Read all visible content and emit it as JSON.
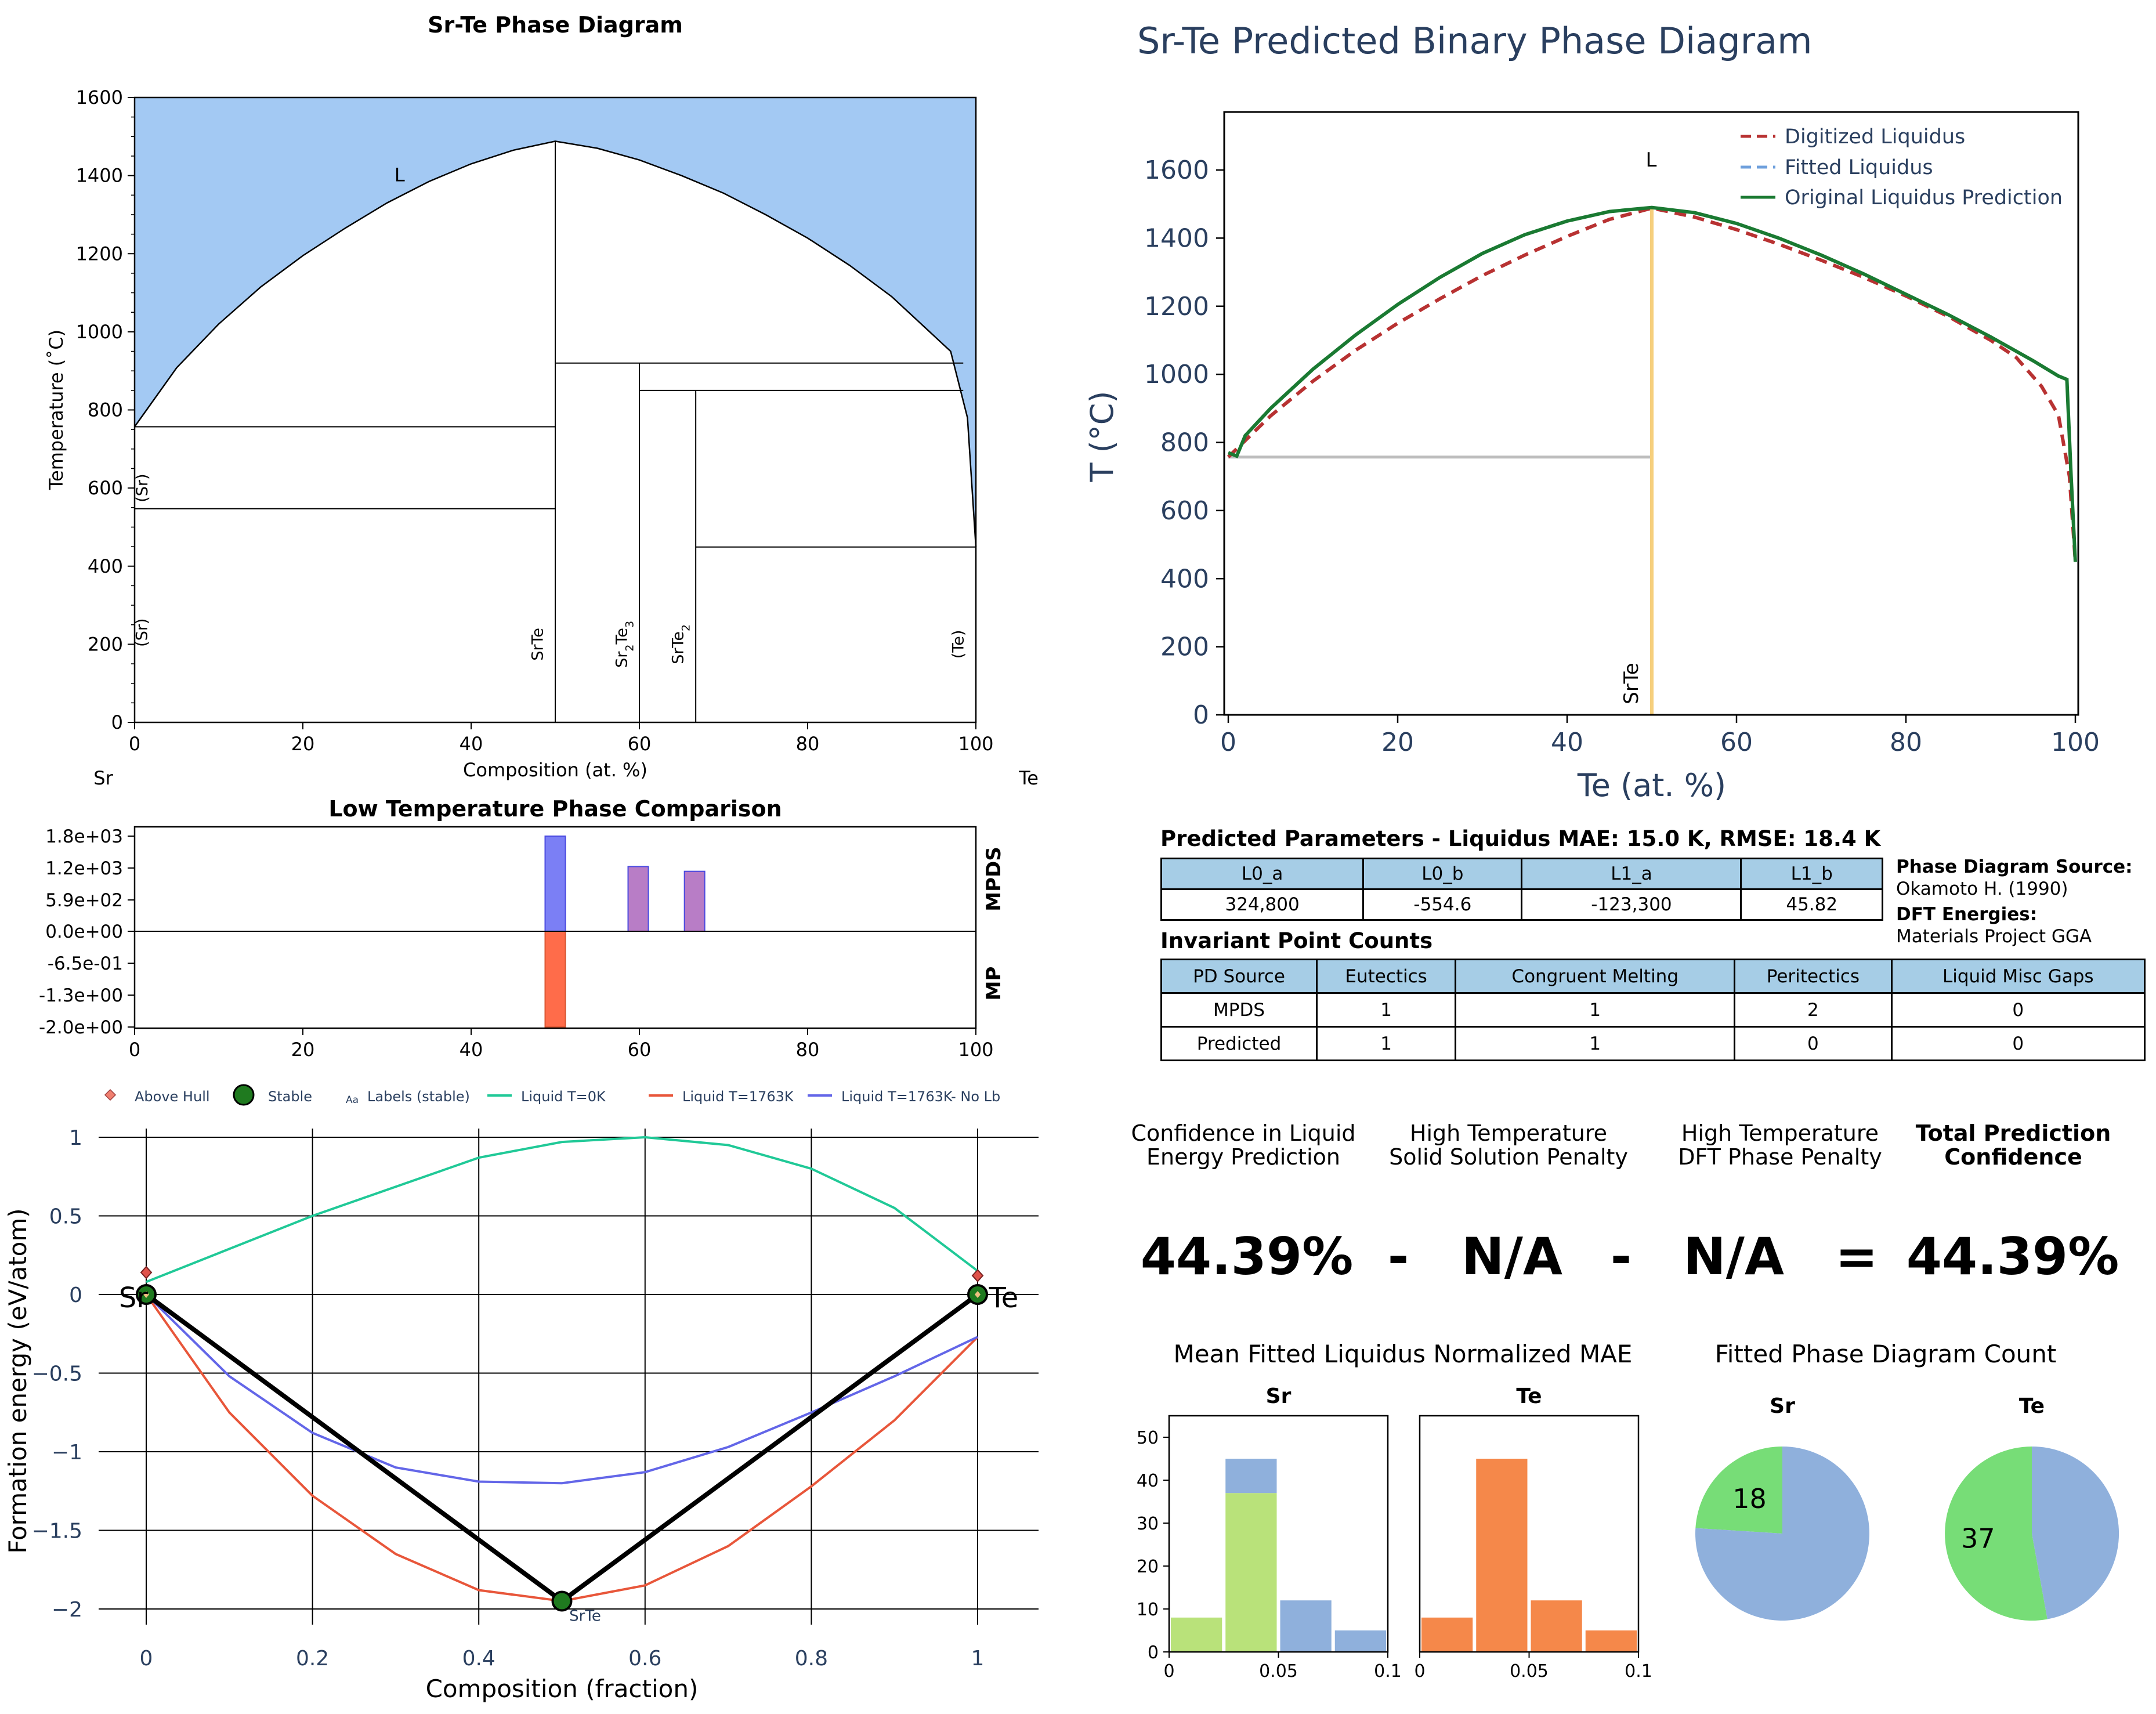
{
  "chart_data": [
    {
      "type": "area",
      "title": "Sr-Te Phase Diagram",
      "xlabel": "Composition (at. %)",
      "ylabel": "Temperature (˚C)",
      "xlim": [
        0,
        100
      ],
      "ylim": [
        0,
        1600
      ],
      "xticks": [
        "0",
        "20",
        "40",
        "60",
        "80",
        "100"
      ],
      "yticks": [
        "0",
        "200",
        "400",
        "600",
        "800",
        "1000",
        "1200",
        "1400",
        "1600"
      ],
      "left_element": "Sr",
      "right_element": "Te",
      "liquid_label": "L",
      "liquidus": [
        [
          0,
          757
        ],
        [
          5,
          908
        ],
        [
          10,
          1020
        ],
        [
          15,
          1115
        ],
        [
          20,
          1195
        ],
        [
          25,
          1265
        ],
        [
          30,
          1330
        ],
        [
          35,
          1385
        ],
        [
          40,
          1430
        ],
        [
          45,
          1465
        ],
        [
          50,
          1488
        ],
        [
          55,
          1470
        ],
        [
          60,
          1440
        ],
        [
          65,
          1400
        ],
        [
          70,
          1355
        ],
        [
          75,
          1300
        ],
        [
          80,
          1240
        ],
        [
          85,
          1170
        ],
        [
          90,
          1090
        ],
        [
          94,
          1010
        ],
        [
          97,
          950
        ],
        [
          99,
          780
        ],
        [
          100,
          449
        ]
      ],
      "horizontal_lines": [
        {
          "x": [
            0,
            50
          ],
          "y": 757
        },
        {
          "x": [
            0,
            50
          ],
          "y": 547
        },
        {
          "x": [
            50,
            98.5
          ],
          "y": 920
        },
        {
          "x": [
            60,
            98.5
          ],
          "y": 850
        },
        {
          "x": [
            66.7,
            100
          ],
          "y": 449
        }
      ],
      "vertical_lines": [
        {
          "x": 50,
          "y": [
            0,
            1488
          ]
        },
        {
          "x": 60,
          "y": [
            0,
            920
          ]
        },
        {
          "x": 66.7,
          "y": [
            0,
            850
          ]
        }
      ],
      "phase_labels": [
        {
          "text": "(Sr)",
          "x": 1.5,
          "y": 600
        },
        {
          "text": "(Sr)",
          "x": 1.5,
          "y": 230
        },
        {
          "text": "SrTe",
          "x": 48.5,
          "y": 200
        },
        {
          "text": "Sr2Te3",
          "x": 58.5,
          "y": 200
        },
        {
          "text": "SrTe2",
          "x": 65.2,
          "y": 200
        },
        {
          "text": "(Te)",
          "x": 98.5,
          "y": 200
        }
      ]
    },
    {
      "type": "bar",
      "title": "Low Temperature Phase Comparison",
      "xlim": [
        0,
        100
      ],
      "xticks": [
        "0",
        "20",
        "40",
        "60",
        "80",
        "100"
      ],
      "yticks": [
        "1.8e+03",
        "1.2e+03",
        "5.9e+02",
        "0.0e+00",
        "-6.5e-01",
        "-1.3e+00",
        "-2.0e+00"
      ],
      "series": [
        {
          "name": "MPDS",
          "bars": [
            {
              "x": 50,
              "value": 1.0,
              "color": "#7b7ff5"
            },
            {
              "x": 60,
              "value": 0.68,
              "color": "#b87dc6"
            },
            {
              "x": 66.7,
              "value": 0.63,
              "color": "#b87dc6"
            }
          ]
        },
        {
          "name": "MP",
          "bars": [
            {
              "x": 50,
              "value": -1.0,
              "color": "#ff6c4a"
            }
          ]
        }
      ]
    },
    {
      "type": "line",
      "title": "Sr-Te Predicted Binary Phase Diagram",
      "xlabel": "Te (at. %)",
      "ylabel": "T (°C)",
      "xlim": [
        0,
        100
      ],
      "ylim": [
        0,
        1750
      ],
      "xticks": [
        "0",
        "20",
        "40",
        "60",
        "80",
        "100"
      ],
      "yticks": [
        "0",
        "200",
        "400",
        "600",
        "800",
        "1000",
        "1200",
        "1400",
        "1600"
      ],
      "liquid_label": "L",
      "compound_label": "SrTe",
      "legend": [
        "Digitized Liquidus",
        "Fitted Liquidus",
        "Original Liquidus Prediction"
      ],
      "series": [
        {
          "name": "Digitized Liquidus",
          "color": "#b83232",
          "points": [
            [
              0,
              757
            ],
            [
              5,
              878
            ],
            [
              10,
              980
            ],
            [
              15,
              1070
            ],
            [
              20,
              1150
            ],
            [
              25,
              1222
            ],
            [
              30,
              1290
            ],
            [
              35,
              1350
            ],
            [
              40,
              1405
            ],
            [
              45,
              1455
            ],
            [
              50,
              1488
            ],
            [
              55,
              1462
            ],
            [
              60,
              1425
            ],
            [
              65,
              1382
            ],
            [
              70,
              1335
            ],
            [
              75,
              1285
            ],
            [
              80,
              1230
            ],
            [
              85,
              1170
            ],
            [
              90,
              1100
            ],
            [
              93,
              1050
            ],
            [
              96,
              965
            ],
            [
              98,
              880
            ],
            [
              99.3,
              700
            ],
            [
              100,
              449
            ]
          ]
        },
        {
          "name": "Original Liquidus Prediction",
          "color": "#1a7a32",
          "points": [
            [
              0,
              770
            ],
            [
              1,
              760
            ],
            [
              2,
              820
            ],
            [
              5,
              900
            ],
            [
              10,
              1015
            ],
            [
              15,
              1115
            ],
            [
              20,
              1205
            ],
            [
              25,
              1285
            ],
            [
              30,
              1355
            ],
            [
              35,
              1410
            ],
            [
              40,
              1450
            ],
            [
              45,
              1478
            ],
            [
              50,
              1490
            ],
            [
              55,
              1475
            ],
            [
              60,
              1443
            ],
            [
              65,
              1400
            ],
            [
              70,
              1350
            ],
            [
              75,
              1295
            ],
            [
              80,
              1235
            ],
            [
              85,
              1175
            ],
            [
              90,
              1110
            ],
            [
              95,
              1040
            ],
            [
              98,
              995
            ],
            [
              99,
              985
            ],
            [
              99.5,
              700
            ],
            [
              100,
              449
            ]
          ]
        }
      ],
      "solidus": {
        "x": [
          0,
          50
        ],
        "y": 757
      },
      "compound_line": {
        "x": 50,
        "y": [
          0,
          1490
        ]
      }
    },
    {
      "type": "line",
      "xlabel": "Composition (fraction)",
      "ylabel": "Formation energy (eV/atom)",
      "xlim": [
        -0.05,
        1.05
      ],
      "ylim": [
        -2.05,
        1.1
      ],
      "xticks": [
        "0",
        "0.2",
        "0.4",
        "0.6",
        "0.8",
        "1"
      ],
      "yticks": [
        "1",
        "0.5",
        "0",
        "−0.5",
        "−1",
        "−1.5",
        "−2"
      ],
      "legend": [
        "Above Hull",
        "Stable",
        "Labels (stable)",
        "Liquid T=0K",
        "Liquid T=1763K",
        "Liquid T=1763K- No Lb"
      ],
      "legend_glyph": "Aa",
      "above_hull": [
        [
          0,
          0.14
        ],
        [
          1,
          0.12
        ]
      ],
      "stable": [
        [
          0,
          0
        ],
        [
          0.5,
          -1.95
        ],
        [
          1,
          0
        ]
      ],
      "stable_labels": [
        "Sr",
        "SrTe",
        "Te"
      ],
      "series": [
        {
          "name": "Liquid T=0K",
          "color": "#20c997",
          "points": [
            [
              0,
              0.08
            ],
            [
              0.2,
              0.5
            ],
            [
              0.4,
              0.87
            ],
            [
              0.5,
              0.97
            ],
            [
              0.6,
              1.0
            ],
            [
              0.7,
              0.95
            ],
            [
              0.8,
              0.8
            ],
            [
              0.9,
              0.55
            ],
            [
              1,
              0.15
            ]
          ]
        },
        {
          "name": "Liquid T=1763K",
          "color": "#e8563a",
          "points": [
            [
              0,
              0
            ],
            [
              0.1,
              -0.75
            ],
            [
              0.2,
              -1.28
            ],
            [
              0.3,
              -1.65
            ],
            [
              0.4,
              -1.88
            ],
            [
              0.5,
              -1.95
            ],
            [
              0.6,
              -1.85
            ],
            [
              0.7,
              -1.6
            ],
            [
              0.8,
              -1.22
            ],
            [
              0.9,
              -0.8
            ],
            [
              1,
              -0.27
            ]
          ]
        },
        {
          "name": "Liquid T=1763K- No Lb",
          "color": "#6366e8",
          "points": [
            [
              0,
              0
            ],
            [
              0.1,
              -0.52
            ],
            [
              0.2,
              -0.88
            ],
            [
              0.3,
              -1.1
            ],
            [
              0.4,
              -1.19
            ],
            [
              0.5,
              -1.2
            ],
            [
              0.6,
              -1.13
            ],
            [
              0.7,
              -0.97
            ],
            [
              0.8,
              -0.75
            ],
            [
              0.9,
              -0.52
            ],
            [
              1,
              -0.27
            ]
          ]
        }
      ]
    },
    {
      "type": "bar",
      "title": "Mean Fitted Liquidus Normalized MAE",
      "panels": [
        {
          "title": "Sr",
          "bins": [
            {
              "x0": 0,
              "x1": 0.025,
              "green": 8,
              "blue": 0
            },
            {
              "x0": 0.025,
              "x1": 0.05,
              "green": 37,
              "blue": 8
            },
            {
              "x0": 0.05,
              "x1": 0.075,
              "green": 0,
              "blue": 12
            },
            {
              "x0": 0.075,
              "x1": 0.1,
              "green": 0,
              "blue": 5
            }
          ]
        },
        {
          "title": "Te",
          "bins": [
            {
              "x0": 0,
              "x1": 0.025,
              "value": 8
            },
            {
              "x0": 0.025,
              "x1": 0.05,
              "value": 45
            },
            {
              "x0": 0.05,
              "x1": 0.075,
              "value": 12
            },
            {
              "x0": 0.075,
              "x1": 0.1,
              "value": 5
            }
          ]
        }
      ],
      "xticks": [
        "0",
        "0.05",
        "0.1"
      ],
      "yticks": [
        "0",
        "10",
        "20",
        "30",
        "40",
        "50"
      ],
      "ylim": [
        0,
        55
      ]
    },
    {
      "type": "pie",
      "title": "Fitted Phase Diagram Count",
      "panels": [
        {
          "title": "Sr",
          "label": "18",
          "slices": [
            {
              "value": 18,
              "color": "#77dd77"
            },
            {
              "value": 57,
              "color": "#8fb0dc"
            }
          ]
        },
        {
          "title": "Te",
          "label": "37",
          "slices": [
            {
              "value": 37,
              "color": "#77dd77"
            },
            {
              "value": 33,
              "color": "#8fb0dc"
            }
          ]
        }
      ]
    }
  ],
  "params": {
    "title": "Predicted Parameters - Liquidus MAE: 15.0 K, RMSE: 18.4 K",
    "headers": [
      "L0_a",
      "L0_b",
      "L1_a",
      "L1_b"
    ],
    "values": [
      "324,800",
      "-554.6",
      "-123,300",
      "45.82"
    ]
  },
  "source_info": {
    "pd_label": "Phase Diagram Source:",
    "pd_value": "Okamoto H. (1990)",
    "dft_label": "DFT Energies:",
    "dft_value": "Materials Project GGA"
  },
  "invariants": {
    "title": "Invariant Point Counts",
    "headers": [
      "PD Source",
      "Eutectics",
      "Congruent Melting",
      "Peritectics",
      "Liquid Misc Gaps"
    ],
    "rows": [
      [
        "MPDS",
        "1",
        "1",
        "2",
        "0"
      ],
      [
        "Predicted",
        "1",
        "1",
        "0",
        "0"
      ]
    ]
  },
  "confidence": {
    "h1a": "Confidence in Liquid",
    "h1b": "Energy Prediction",
    "h2a": "High Temperature",
    "h2b": "Solid Solution Penalty",
    "h3a": "High Temperature",
    "h3b": "DFT Phase Penalty",
    "h4a": "Total Prediction",
    "h4b": "Confidence",
    "v1": "44.39%",
    "op1": "-",
    "v2": "N/A",
    "op2": "-",
    "v3": "N/A",
    "op3": "=",
    "v4": "44.39%"
  }
}
